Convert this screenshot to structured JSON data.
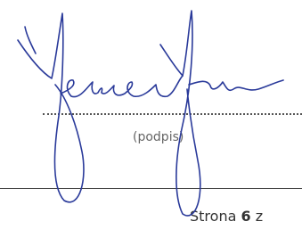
{
  "signature_caption": "(podpis)",
  "footer": {
    "page_label": "Strona",
    "page_number": "6",
    "page_of": "z"
  }
}
